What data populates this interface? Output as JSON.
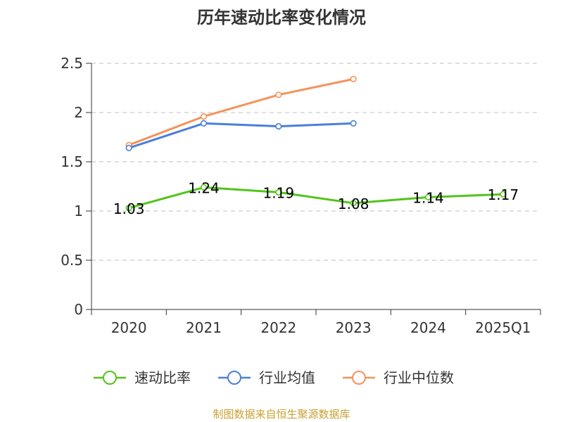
{
  "chart_data": {
    "type": "line",
    "title": "历年速动比率变化情况",
    "xlabel": "",
    "ylabel": "",
    "categories": [
      "2020",
      "2021",
      "2022",
      "2023",
      "2024",
      "2025Q1"
    ],
    "y_ticks": [
      "0",
      "0.5",
      "1",
      "1.5",
      "2",
      "2.5"
    ],
    "ylim": [
      0,
      2.5
    ],
    "grid": "horizontal-dashed",
    "legend_position": "bottom",
    "series": [
      {
        "name": "速动比率",
        "color": "#52c41a",
        "values": [
          1.03,
          1.24,
          1.19,
          1.08,
          1.14,
          1.17
        ],
        "labels": [
          "1.03",
          "1.24",
          "1.19",
          "1.08",
          "1.14",
          "1.17"
        ]
      },
      {
        "name": "行业均值",
        "color": "#4a7fd9",
        "values": [
          1.64,
          1.89,
          1.86,
          1.89,
          null,
          null
        ]
      },
      {
        "name": "行业中位数",
        "color": "#f5925a",
        "values": [
          1.67,
          1.96,
          2.18,
          2.34,
          null,
          null
        ]
      }
    ]
  },
  "source": "制图数据来自恒生聚源数据库"
}
